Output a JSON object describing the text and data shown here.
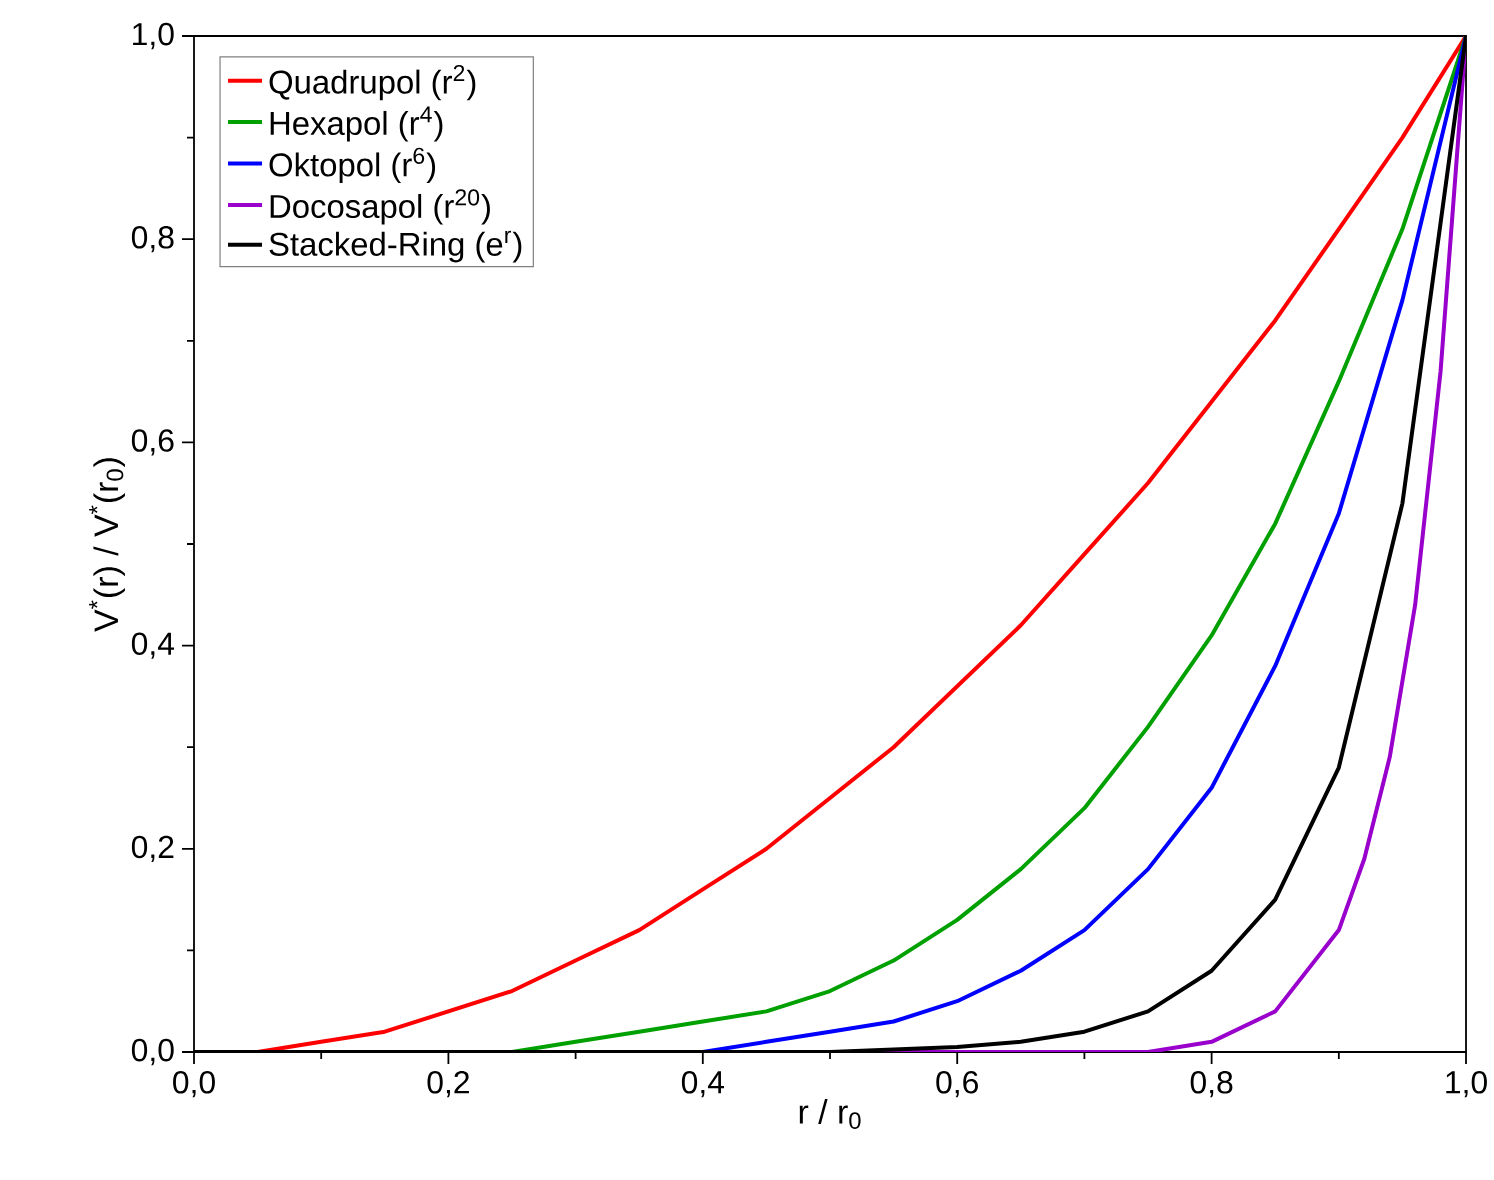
{
  "chart_data": {
    "type": "line",
    "xlabel": "r / r$_{0}$",
    "ylabel": "V$^{*}$(r) / V$^{*}$(r$_{0}$)",
    "xlim": [
      0,
      1
    ],
    "ylim": [
      0,
      1
    ],
    "xticks": [
      {
        "value": 0,
        "label": "0,0"
      },
      {
        "value": 0.2,
        "label": "0,2"
      },
      {
        "value": 0.4,
        "label": "0,4"
      },
      {
        "value": 0.6,
        "label": "0,6"
      },
      {
        "value": 0.8,
        "label": "0,8"
      },
      {
        "value": 1,
        "label": "1,0"
      }
    ],
    "yticks": [
      {
        "value": 0,
        "label": "0,0"
      },
      {
        "value": 0.2,
        "label": "0,2"
      },
      {
        "value": 0.4,
        "label": "0,4"
      },
      {
        "value": 0.6,
        "label": "0,6"
      },
      {
        "value": 0.8,
        "label": "0,8"
      },
      {
        "value": 1,
        "label": "1,0"
      }
    ],
    "legend": "top left",
    "grid": false,
    "marker": "none",
    "line_style": "solid",
    "series": [
      {
        "name": "Quadrupol (r$^{2}$)",
        "color": "#ff0000",
        "x": [
          0,
          0.05,
          0.1,
          0.15,
          0.2,
          0.25,
          0.3,
          0.35,
          0.4,
          0.45,
          0.5,
          0.55,
          0.6,
          0.65,
          0.7,
          0.75,
          0.8,
          0.85,
          0.9,
          0.95,
          1
        ],
        "values": [
          0,
          0,
          0.01,
          0.02,
          0.04,
          0.06,
          0.09,
          0.12,
          0.16,
          0.2,
          0.25,
          0.3,
          0.36,
          0.42,
          0.49,
          0.56,
          0.64,
          0.72,
          0.81,
          0.9,
          1
        ]
      },
      {
        "name": "Hexapol (r$^{4}$)",
        "color": "#00a000",
        "x": [
          0.15,
          0.2,
          0.25,
          0.3,
          0.35,
          0.4,
          0.45,
          0.5,
          0.55,
          0.6,
          0.65,
          0.7,
          0.75,
          0.8,
          0.85,
          0.9,
          0.95,
          1
        ],
        "values": [
          0,
          0,
          0,
          0.01,
          0.02,
          0.03,
          0.04,
          0.06,
          0.09,
          0.13,
          0.18,
          0.24,
          0.32,
          0.41,
          0.52,
          0.66,
          0.81,
          1
        ]
      },
      {
        "name": "Oktopol (r$^{6}$)",
        "color": "#0000ff",
        "x": [
          0.3,
          0.35,
          0.4,
          0.45,
          0.5,
          0.55,
          0.6,
          0.65,
          0.7,
          0.75,
          0.8,
          0.85,
          0.9,
          0.95,
          1
        ],
        "values": [
          0,
          0,
          0,
          0.01,
          0.02,
          0.03,
          0.05,
          0.08,
          0.12,
          0.18,
          0.26,
          0.38,
          0.53,
          0.74,
          1
        ]
      },
      {
        "name": "Docosapol (r$^{20}$)",
        "color": "#9900cc",
        "x": [
          0,
          0.5,
          0.6,
          0.7,
          0.75,
          0.8,
          0.85,
          0.9,
          0.92,
          0.94,
          0.96,
          0.98,
          1
        ],
        "values": [
          0,
          0,
          0,
          0,
          0,
          0.01,
          0.04,
          0.12,
          0.19,
          0.29,
          0.44,
          0.67,
          1
        ]
      },
      {
        "name": "Stacked-Ring (e$^{r}$)",
        "color": "#000000",
        "x": [
          0,
          0.5,
          0.6,
          0.65,
          0.7,
          0.75,
          0.8,
          0.85,
          0.9,
          0.95,
          1
        ],
        "values": [
          0,
          0,
          0.005,
          0.01,
          0.02,
          0.04,
          0.08,
          0.15,
          0.28,
          0.54,
          1
        ]
      }
    ]
  }
}
